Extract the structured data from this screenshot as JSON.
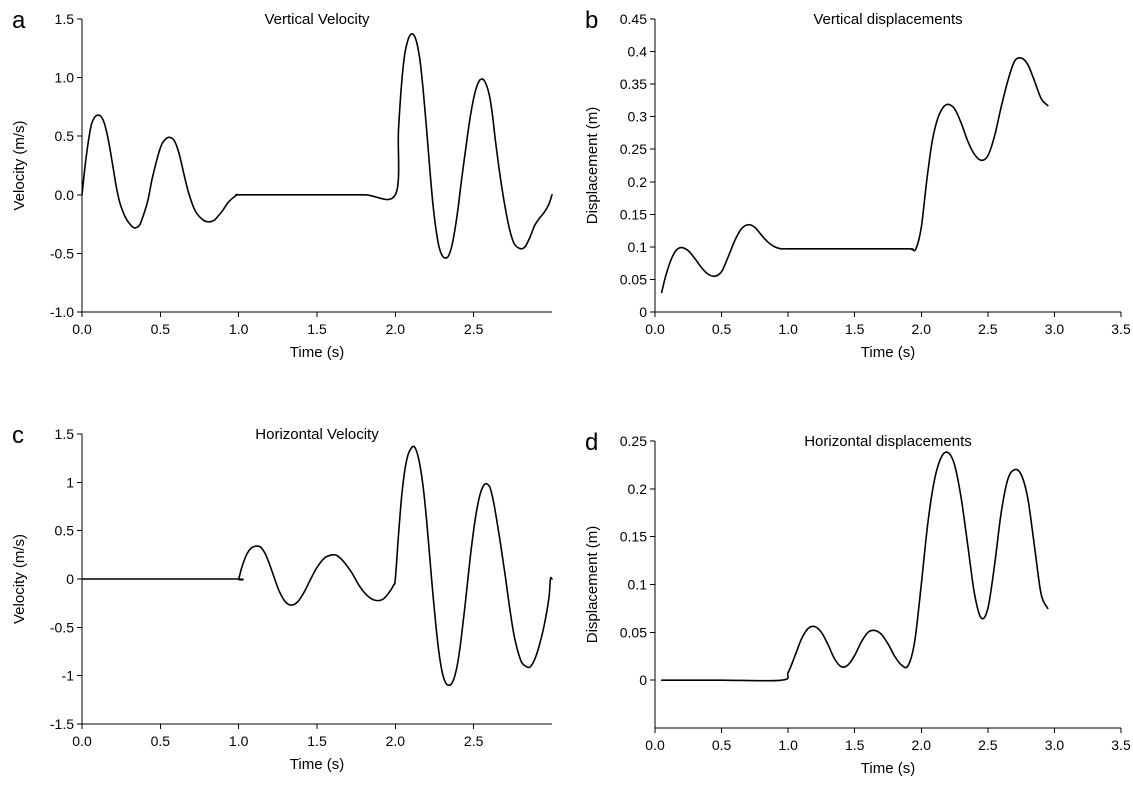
{
  "chart_data": [
    {
      "panel": "a",
      "type": "line",
      "title": "Vertical Velocity",
      "xlabel": "Time (s)",
      "ylabel": "Velocity (m/s)",
      "xlim": [
        0,
        3
      ],
      "ylim": [
        -1,
        1.5
      ],
      "xticks": [
        0,
        0.5,
        1,
        1.5,
        2,
        2.5
      ],
      "xtick_labels": [
        "0.0",
        "0.5",
        "1.0",
        "1.5",
        "2.0",
        "2.5"
      ],
      "yticks": [
        -1,
        -0.5,
        0,
        0.5,
        1,
        1.5
      ],
      "ytick_labels": [
        "-1.0",
        "-0.5",
        "0.0",
        "0.5",
        "1.0",
        "1.5"
      ],
      "grid": false,
      "series": [
        {
          "x": [
            0,
            0.02,
            0.04,
            0.06,
            0.08,
            0.1,
            0.12,
            0.14,
            0.16,
            0.18,
            0.2,
            0.22,
            0.24,
            0.26,
            0.28,
            0.3,
            0.33,
            0.36,
            0.38,
            0.42,
            0.45,
            0.5,
            0.53,
            0.56,
            0.59,
            0.62,
            0.65,
            0.68,
            0.72,
            0.76,
            0.8,
            0.84,
            0.87,
            0.9,
            0.93,
            0.96,
            0.99,
            1.0,
            1.2,
            1.5,
            1.8,
            2.0,
            2.02,
            2.04,
            2.06,
            2.08,
            2.1,
            2.12,
            2.14,
            2.16,
            2.18,
            2.2,
            2.22,
            2.24,
            2.26,
            2.28,
            2.3,
            2.32,
            2.34,
            2.36,
            2.38,
            2.4,
            2.42,
            2.45,
            2.48,
            2.51,
            2.54,
            2.57,
            2.6,
            2.62,
            2.64,
            2.67,
            2.7,
            2.73,
            2.76,
            2.8,
            2.83,
            2.86,
            2.89,
            2.92,
            2.95,
            2.98,
            3.0
          ],
          "y": [
            0,
            0.25,
            0.45,
            0.6,
            0.66,
            0.68,
            0.67,
            0.62,
            0.52,
            0.38,
            0.22,
            0.06,
            -0.06,
            -0.14,
            -0.2,
            -0.24,
            -0.28,
            -0.27,
            -0.22,
            -0.05,
            0.15,
            0.4,
            0.47,
            0.49,
            0.46,
            0.35,
            0.18,
            0.02,
            -0.13,
            -0.2,
            -0.23,
            -0.22,
            -0.18,
            -0.13,
            -0.07,
            -0.03,
            0,
            0,
            0,
            0,
            0,
            0,
            0.55,
            0.95,
            1.2,
            1.32,
            1.37,
            1.36,
            1.28,
            1.12,
            0.86,
            0.55,
            0.22,
            -0.08,
            -0.3,
            -0.45,
            -0.52,
            -0.54,
            -0.52,
            -0.44,
            -0.3,
            -0.12,
            0.1,
            0.4,
            0.68,
            0.88,
            0.98,
            0.97,
            0.85,
            0.68,
            0.45,
            0.15,
            -0.1,
            -0.3,
            -0.42,
            -0.46,
            -0.44,
            -0.36,
            -0.26,
            -0.2,
            -0.15,
            -0.08,
            0
          ]
        }
      ]
    },
    {
      "panel": "b",
      "type": "line",
      "title": "Vertical displacements",
      "xlabel": "Time (s)",
      "ylabel": "Displacement (m)",
      "xlim": [
        0,
        3.5
      ],
      "ylim": [
        0,
        0.45
      ],
      "xticks": [
        0,
        0.5,
        1,
        1.5,
        2,
        2.5,
        3,
        3.5
      ],
      "xtick_labels": [
        "0.0",
        "0.5",
        "1.0",
        "1.5",
        "2.0",
        "2.5",
        "3.0",
        "3.5"
      ],
      "yticks": [
        0,
        0.05,
        0.1,
        0.15,
        0.2,
        0.25,
        0.3,
        0.35,
        0.4,
        0.45
      ],
      "ytick_labels": [
        "0",
        "0.05",
        "0.1",
        "0.15",
        "0.2",
        "0.25",
        "0.3",
        "0.35",
        "0.4",
        "0.45"
      ],
      "grid": false,
      "series": [
        {
          "x": [
            0.05,
            0.08,
            0.12,
            0.16,
            0.2,
            0.25,
            0.3,
            0.35,
            0.4,
            0.45,
            0.5,
            0.55,
            0.6,
            0.65,
            0.7,
            0.75,
            0.8,
            0.85,
            0.9,
            0.95,
            1.0,
            1.5,
            1.9,
            1.93,
            1.96,
            2.0,
            2.04,
            2.08,
            2.12,
            2.16,
            2.2,
            2.25,
            2.3,
            2.35,
            2.4,
            2.45,
            2.5,
            2.55,
            2.6,
            2.65,
            2.7,
            2.75,
            2.8,
            2.85,
            2.9,
            2.95
          ],
          "y": [
            0.03,
            0.055,
            0.08,
            0.095,
            0.099,
            0.094,
            0.082,
            0.068,
            0.058,
            0.055,
            0.062,
            0.085,
            0.11,
            0.128,
            0.134,
            0.13,
            0.118,
            0.107,
            0.1,
            0.097,
            0.097,
            0.097,
            0.097,
            0.096,
            0.097,
            0.13,
            0.2,
            0.26,
            0.295,
            0.313,
            0.319,
            0.312,
            0.29,
            0.262,
            0.242,
            0.233,
            0.24,
            0.27,
            0.315,
            0.355,
            0.385,
            0.39,
            0.38,
            0.355,
            0.328,
            0.317
          ]
        }
      ]
    },
    {
      "panel": "c",
      "type": "line",
      "title": "Horizontal Velocity",
      "xlabel": "Time (s)",
      "ylabel": "Velocity (m/s)",
      "xlim": [
        0,
        3
      ],
      "ylim": [
        -1.5,
        1.5
      ],
      "xticks": [
        0,
        0.5,
        1,
        1.5,
        2,
        2.5
      ],
      "xtick_labels": [
        "0.0",
        "0.5",
        "1.0",
        "1.5",
        "2.0",
        "2.5"
      ],
      "yticks": [
        -1.5,
        -1,
        -0.5,
        0,
        0.5,
        1,
        1.5
      ],
      "ytick_labels": [
        "-1.5",
        "-1",
        "-0.5",
        "0",
        "0.5",
        "1",
        "1.5"
      ],
      "grid": false,
      "series": [
        {
          "x": [
            0,
            0.5,
            0.99,
            1.0,
            1.02,
            1.05,
            1.08,
            1.11,
            1.14,
            1.17,
            1.2,
            1.23,
            1.26,
            1.3,
            1.34,
            1.38,
            1.42,
            1.46,
            1.5,
            1.55,
            1.6,
            1.63,
            1.67,
            1.72,
            1.77,
            1.82,
            1.87,
            1.92,
            1.96,
            1.99,
            2.0,
            2.02,
            2.04,
            2.06,
            2.08,
            2.1,
            2.12,
            2.14,
            2.16,
            2.18,
            2.2,
            2.22,
            2.24,
            2.26,
            2.28,
            2.3,
            2.32,
            2.34,
            2.36,
            2.38,
            2.4,
            2.42,
            2.45,
            2.48,
            2.51,
            2.54,
            2.57,
            2.6,
            2.62,
            2.64,
            2.67,
            2.7,
            2.73,
            2.76,
            2.8,
            2.83,
            2.86,
            2.89,
            2.92,
            2.95,
            2.98,
            2.99,
            3.0
          ],
          "y": [
            0,
            0,
            0,
            0,
            0.12,
            0.25,
            0.32,
            0.34,
            0.33,
            0.26,
            0.14,
            0,
            -0.13,
            -0.24,
            -0.27,
            -0.23,
            -0.13,
            0,
            0.12,
            0.22,
            0.25,
            0.24,
            0.18,
            0.07,
            -0.07,
            -0.17,
            -0.22,
            -0.21,
            -0.14,
            -0.06,
            0,
            0.45,
            0.85,
            1.12,
            1.28,
            1.35,
            1.37,
            1.3,
            1.15,
            0.92,
            0.6,
            0.22,
            -0.16,
            -0.5,
            -0.78,
            -0.97,
            -1.07,
            -1.1,
            -1.08,
            -1.0,
            -0.85,
            -0.62,
            -0.2,
            0.25,
            0.62,
            0.87,
            0.98,
            0.96,
            0.85,
            0.68,
            0.38,
            0.05,
            -0.3,
            -0.6,
            -0.84,
            -0.9,
            -0.91,
            -0.83,
            -0.68,
            -0.48,
            -0.2,
            0,
            0
          ]
        }
      ]
    },
    {
      "panel": "d",
      "type": "line",
      "title": "Horizontal displacements",
      "xlabel": "Time (s)",
      "ylabel": "Displacement (m)",
      "xlim": [
        0,
        3.5
      ],
      "ylim": [
        -0.05,
        0.25
      ],
      "xticks": [
        0,
        0.5,
        1,
        1.5,
        2,
        2.5,
        3,
        3.5
      ],
      "xtick_labels": [
        "0.0",
        "0.5",
        "1.0",
        "1.5",
        "2.0",
        "2.5",
        "3.0",
        "3.5"
      ],
      "yticks": [
        0,
        0.05,
        0.1,
        0.15,
        0.2,
        0.25
      ],
      "ytick_labels": [
        "0",
        "0.05",
        "0.1",
        "0.15",
        "0.2",
        "0.25"
      ],
      "grid": false,
      "series": [
        {
          "x": [
            0.05,
            0.5,
            0.95,
            1.0,
            1.05,
            1.1,
            1.15,
            1.2,
            1.25,
            1.3,
            1.35,
            1.4,
            1.45,
            1.5,
            1.55,
            1.6,
            1.65,
            1.7,
            1.75,
            1.8,
            1.85,
            1.9,
            1.95,
            2.0,
            2.05,
            2.1,
            2.15,
            2.2,
            2.25,
            2.3,
            2.35,
            2.4,
            2.45,
            2.5,
            2.55,
            2.6,
            2.65,
            2.7,
            2.75,
            2.8,
            2.85,
            2.9,
            2.95
          ],
          "y": [
            0,
            0,
            0,
            0.008,
            0.025,
            0.043,
            0.054,
            0.056,
            0.05,
            0.037,
            0.022,
            0.014,
            0.016,
            0.026,
            0.04,
            0.05,
            0.052,
            0.048,
            0.038,
            0.025,
            0.016,
            0.015,
            0.04,
            0.1,
            0.165,
            0.21,
            0.233,
            0.238,
            0.225,
            0.19,
            0.14,
            0.09,
            0.065,
            0.075,
            0.12,
            0.175,
            0.21,
            0.22,
            0.215,
            0.19,
            0.14,
            0.09,
            0.075
          ]
        }
      ]
    }
  ]
}
